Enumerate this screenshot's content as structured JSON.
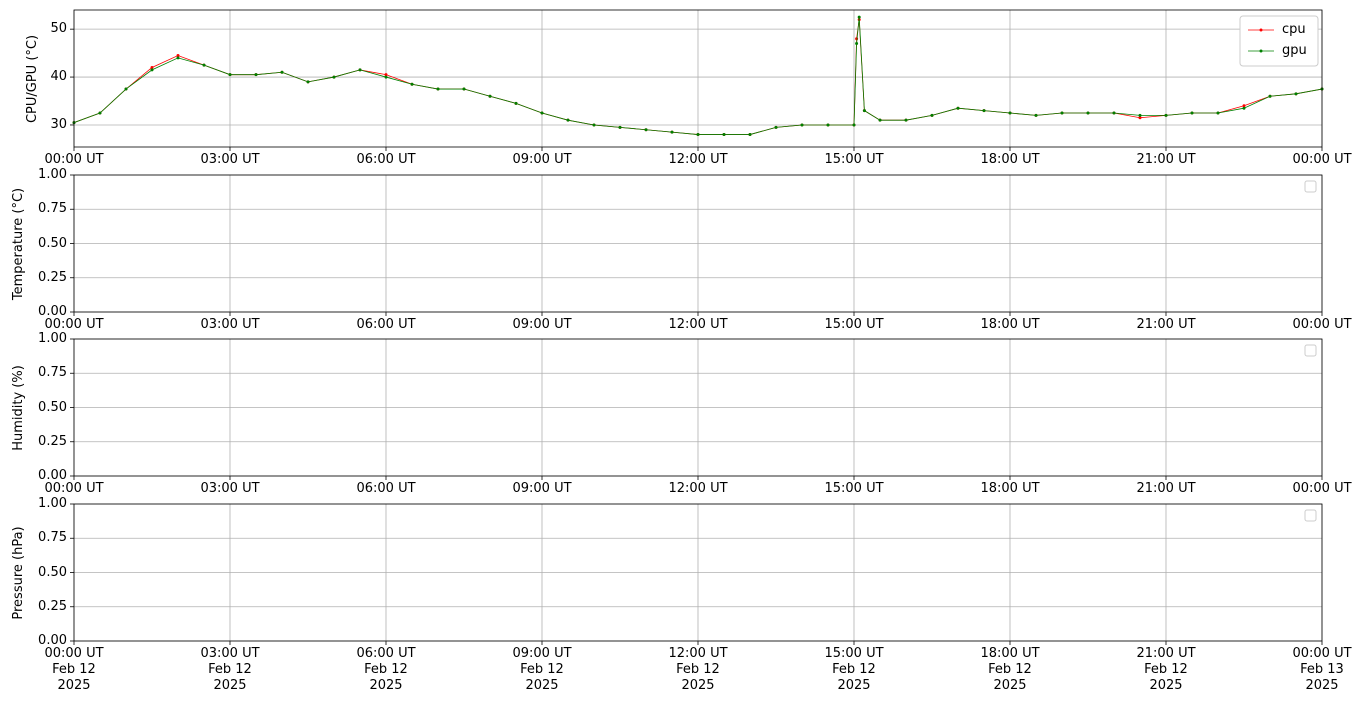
{
  "chart_data": [
    {
      "type": "line",
      "ylabel": "CPU/GPU (°C)",
      "legend": "upper right",
      "grid": true,
      "x": [
        0,
        0.5,
        1,
        1.5,
        2,
        2.5,
        3,
        3.5,
        4,
        4.5,
        5,
        5.5,
        6,
        6.5,
        7,
        7.5,
        8,
        8.5,
        9,
        9.5,
        10,
        10.5,
        11,
        11.5,
        12,
        12.5,
        13,
        13.5,
        14,
        14.5,
        15,
        15.05,
        15.1,
        15.2,
        15.5,
        16,
        16.5,
        17,
        17.5,
        18,
        18.5,
        19,
        19.5,
        20,
        20.5,
        21,
        21.5,
        22,
        22.5,
        23,
        23.5,
        24
      ],
      "series": [
        {
          "name": "cpu",
          "color": "#ff0000",
          "values": [
            30.5,
            32.5,
            37.5,
            42,
            44.5,
            42.5,
            40.5,
            40.5,
            41,
            39,
            40,
            41.5,
            40.5,
            38.5,
            37.5,
            37.5,
            36,
            34.5,
            32.5,
            31,
            30,
            29.5,
            29,
            28.5,
            28,
            28,
            28,
            29.5,
            30,
            30,
            30,
            48,
            52,
            33,
            31,
            31,
            32,
            33.5,
            33,
            32.5,
            32,
            32.5,
            32.5,
            32.5,
            31.5,
            32,
            32.5,
            32.5,
            34,
            36,
            36.5,
            37.5
          ]
        },
        {
          "name": "gpu",
          "color": "#008000",
          "values": [
            30.5,
            32.5,
            37.5,
            41.5,
            44,
            42.5,
            40.5,
            40.5,
            41,
            39,
            40,
            41.5,
            40,
            38.5,
            37.5,
            37.5,
            36,
            34.5,
            32.5,
            31,
            30,
            29.5,
            29,
            28.5,
            28,
            28,
            28,
            29.5,
            30,
            30,
            30,
            47,
            52.5,
            33,
            31,
            31,
            32,
            33.5,
            33,
            32.5,
            32,
            32.5,
            32.5,
            32.5,
            32,
            32,
            32.5,
            32.5,
            33.5,
            36,
            36.5,
            37.5
          ]
        }
      ],
      "xlim": [
        0,
        24
      ],
      "xticks": [
        {
          "value": 0,
          "label": "00:00 UT"
        },
        {
          "value": 3,
          "label": "03:00 UT"
        },
        {
          "value": 6,
          "label": "06:00 UT"
        },
        {
          "value": 9,
          "label": "09:00 UT"
        },
        {
          "value": 12,
          "label": "12:00 UT"
        },
        {
          "value": 15,
          "label": "15:00 UT"
        },
        {
          "value": 18,
          "label": "18:00 UT"
        },
        {
          "value": 21,
          "label": "21:00 UT"
        },
        {
          "value": 24,
          "label": "00:00 UT"
        }
      ],
      "ylim": [
        25.4,
        54
      ],
      "yticks": [
        30,
        40,
        50
      ]
    },
    {
      "type": "line",
      "ylabel": "Temperature (°C)",
      "legend": "upper right",
      "grid": true,
      "x": [],
      "series": [],
      "xlim": [
        0,
        24
      ],
      "xticks": [
        {
          "value": 0,
          "label": "00:00 UT"
        },
        {
          "value": 3,
          "label": "03:00 UT"
        },
        {
          "value": 6,
          "label": "06:00 UT"
        },
        {
          "value": 9,
          "label": "09:00 UT"
        },
        {
          "value": 12,
          "label": "12:00 UT"
        },
        {
          "value": 15,
          "label": "15:00 UT"
        },
        {
          "value": 18,
          "label": "18:00 UT"
        },
        {
          "value": 21,
          "label": "21:00 UT"
        },
        {
          "value": 24,
          "label": "00:00 UT"
        }
      ],
      "ylim": [
        0,
        1
      ],
      "yticks": [
        {
          "value": 0,
          "label": "0.00"
        },
        {
          "value": 0.25,
          "label": "0.25"
        },
        {
          "value": 0.5,
          "label": "0.50"
        },
        {
          "value": 0.75,
          "label": "0.75"
        },
        {
          "value": 1,
          "label": "1.00"
        }
      ]
    },
    {
      "type": "line",
      "ylabel": "Humidity (%)",
      "legend": "upper right",
      "grid": true,
      "x": [],
      "series": [],
      "xlim": [
        0,
        24
      ],
      "xticks": [
        {
          "value": 0,
          "label": "00:00 UT"
        },
        {
          "value": 3,
          "label": "03:00 UT"
        },
        {
          "value": 6,
          "label": "06:00 UT"
        },
        {
          "value": 9,
          "label": "09:00 UT"
        },
        {
          "value": 12,
          "label": "12:00 UT"
        },
        {
          "value": 15,
          "label": "15:00 UT"
        },
        {
          "value": 18,
          "label": "18:00 UT"
        },
        {
          "value": 21,
          "label": "21:00 UT"
        },
        {
          "value": 24,
          "label": "00:00 UT"
        }
      ],
      "ylim": [
        0,
        1
      ],
      "yticks": [
        {
          "value": 0,
          "label": "0.00"
        },
        {
          "value": 0.25,
          "label": "0.25"
        },
        {
          "value": 0.5,
          "label": "0.50"
        },
        {
          "value": 0.75,
          "label": "0.75"
        },
        {
          "value": 1,
          "label": "1.00"
        }
      ]
    },
    {
      "type": "line",
      "ylabel": "Pressure (hPa)",
      "legend": "upper right",
      "grid": true,
      "x": [],
      "series": [],
      "xlim": [
        0,
        24
      ],
      "xticks": [
        {
          "value": 0,
          "label": "00:00 UT\nFeb 12\n2025"
        },
        {
          "value": 3,
          "label": "03:00 UT\nFeb 12\n2025"
        },
        {
          "value": 6,
          "label": "06:00 UT\nFeb 12\n2025"
        },
        {
          "value": 9,
          "label": "09:00 UT\nFeb 12\n2025"
        },
        {
          "value": 12,
          "label": "12:00 UT\nFeb 12\n2025"
        },
        {
          "value": 15,
          "label": "15:00 UT\nFeb 12\n2025"
        },
        {
          "value": 18,
          "label": "18:00 UT\nFeb 12\n2025"
        },
        {
          "value": 21,
          "label": "21:00 UT\nFeb 12\n2025"
        },
        {
          "value": 24,
          "label": "00:00 UT\nFeb 13\n2025"
        }
      ],
      "ylim": [
        0,
        1
      ],
      "yticks": [
        {
          "value": 0,
          "label": "0.00"
        },
        {
          "value": 0.25,
          "label": "0.25"
        },
        {
          "value": 0.5,
          "label": "0.50"
        },
        {
          "value": 0.75,
          "label": "0.75"
        },
        {
          "value": 1,
          "label": "1.00"
        }
      ]
    }
  ]
}
